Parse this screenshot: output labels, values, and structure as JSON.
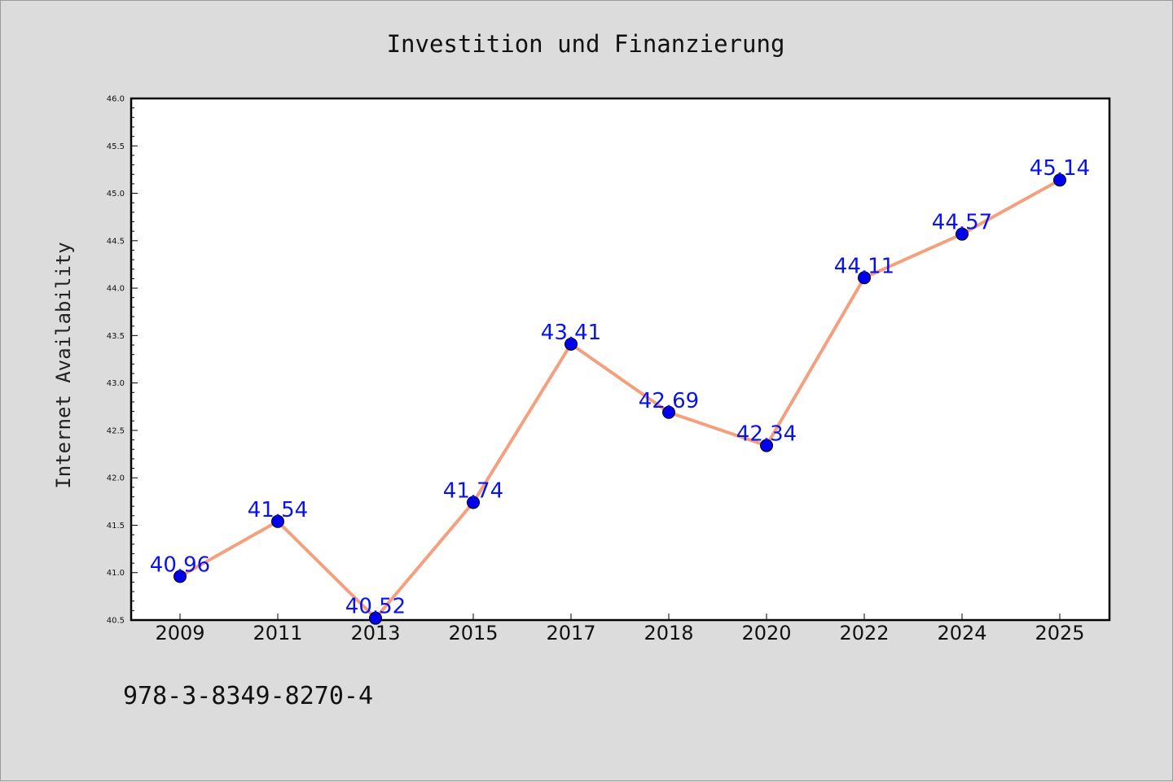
{
  "chart_data": {
    "type": "line",
    "title": "Investition und Finanzierung",
    "xlabel": "",
    "ylabel": "Internet Availability",
    "categories": [
      "2009",
      "2011",
      "2013",
      "2015",
      "2017",
      "2018",
      "2020",
      "2022",
      "2024",
      "2025"
    ],
    "series": [
      {
        "values": [
          40.96,
          41.54,
          40.52,
          41.74,
          43.41,
          42.69,
          42.34,
          44.11,
          44.57,
          45.14
        ],
        "labels": [
          "40.96",
          "41.54",
          "40.52",
          "41.74",
          "43.41",
          "42.69",
          "42.34",
          "44.11",
          "44.57",
          "45.14"
        ],
        "line_color": "#f4a07e",
        "marker_color": "#0000ee"
      }
    ],
    "ylim": [
      40.5,
      46.0
    ],
    "yticks": [
      "40.5",
      "41.0",
      "41.5",
      "42.0",
      "42.5",
      "43.0",
      "43.5",
      "44.0",
      "44.5",
      "45.0",
      "45.5",
      "46.0"
    ],
    "grid": false,
    "legend": "none"
  },
  "footer_text": "978-3-8349-8270-4"
}
